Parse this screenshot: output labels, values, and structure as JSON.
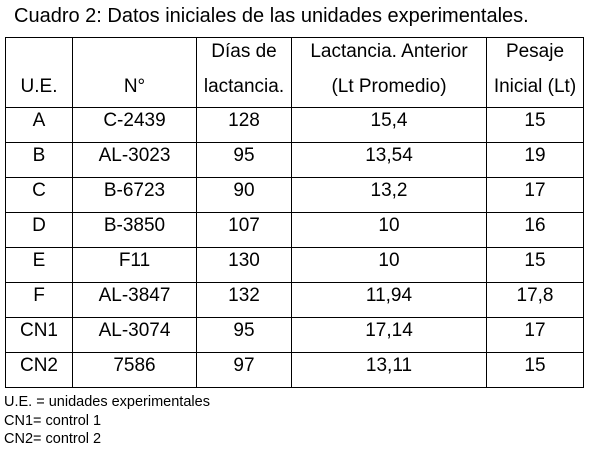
{
  "caption": "Cuadro 2: Datos iniciales de las unidades experimentales.",
  "table": {
    "headers": [
      {
        "line1": "",
        "line2": "U.E."
      },
      {
        "line1": "",
        "line2": "N°"
      },
      {
        "line1": "Días de",
        "line2": "lactancia."
      },
      {
        "line1": "Lactancia. Anterior",
        "line2": "(Lt Promedio)"
      },
      {
        "line1": "Pesaje",
        "line2": "Inicial (Lt)"
      }
    ],
    "rows": [
      [
        "A",
        "C-2439",
        "128",
        "15,4",
        "15"
      ],
      [
        "B",
        "AL-3023",
        "95",
        "13,54",
        "19"
      ],
      [
        "C",
        "B-6723",
        "90",
        "13,2",
        "17"
      ],
      [
        "D",
        "B-3850",
        "107",
        "10",
        "16"
      ],
      [
        "E",
        "F11",
        "130",
        "10",
        "15"
      ],
      [
        "F",
        "AL-3847",
        "132",
        "11,94",
        "17,8"
      ],
      [
        "CN1",
        "AL-3074",
        "95",
        "17,14",
        "17"
      ],
      [
        "CN2",
        "7586",
        "97",
        "13,11",
        "15"
      ]
    ]
  },
  "notes": [
    "U.E. = unidades experimentales",
    "CN1= control 1",
    "CN2= control 2"
  ]
}
